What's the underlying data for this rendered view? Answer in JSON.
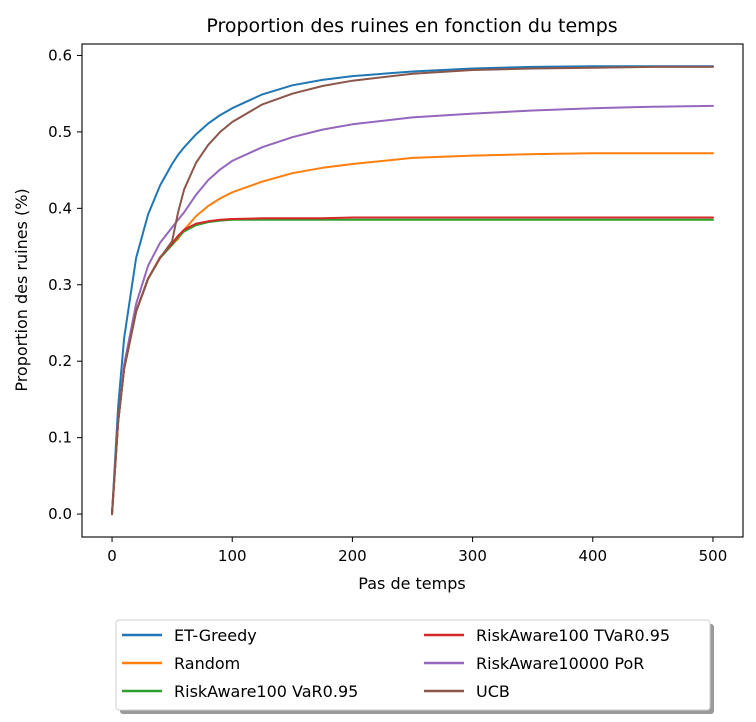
{
  "chart_data": {
    "type": "line",
    "title": "Proportion des ruines en fonction du temps",
    "xlabel": "Pas de temps",
    "ylabel": "Proportion des ruines (%)",
    "xlim": [
      -25,
      525
    ],
    "ylim": [
      -0.03,
      0.615
    ],
    "xticks": [
      0,
      100,
      200,
      300,
      400,
      500
    ],
    "xtick_labels": [
      "0",
      "100",
      "200",
      "300",
      "400",
      "500"
    ],
    "yticks": [
      0.0,
      0.1,
      0.2,
      0.3,
      0.4,
      0.5,
      0.6
    ],
    "ytick_labels": [
      "0.0",
      "0.1",
      "0.2",
      "0.3",
      "0.4",
      "0.5",
      "0.6"
    ],
    "grid": false,
    "legend_placement": "below plot, two columns",
    "x": [
      0,
      5,
      10,
      20,
      30,
      40,
      50,
      55,
      60,
      70,
      80,
      90,
      100,
      125,
      150,
      175,
      200,
      250,
      300,
      350,
      400,
      450,
      500
    ],
    "series": [
      {
        "name": "ET-Greedy",
        "color": "#1f77b4",
        "values": [
          0.0,
          0.14,
          0.23,
          0.335,
          0.392,
          0.43,
          0.458,
          0.47,
          0.48,
          0.497,
          0.511,
          0.522,
          0.531,
          0.549,
          0.561,
          0.568,
          0.573,
          0.579,
          0.583,
          0.585,
          0.586,
          0.586,
          0.586
        ]
      },
      {
        "name": "Random",
        "color": "#ff7f0e",
        "values": [
          0.0,
          0.12,
          0.19,
          0.265,
          0.308,
          0.335,
          0.353,
          0.36,
          0.372,
          0.39,
          0.403,
          0.413,
          0.421,
          0.435,
          0.446,
          0.453,
          0.458,
          0.466,
          0.469,
          0.471,
          0.472,
          0.472,
          0.472
        ]
      },
      {
        "name": "RiskAware100 VaR0.95",
        "color": "#2ca02c",
        "values": [
          0.0,
          0.12,
          0.19,
          0.265,
          0.308,
          0.335,
          0.352,
          0.362,
          0.37,
          0.378,
          0.382,
          0.384,
          0.385,
          0.385,
          0.385,
          0.385,
          0.385,
          0.385,
          0.385,
          0.385,
          0.385,
          0.385,
          0.385
        ]
      },
      {
        "name": "RiskAware100 TVaR0.95",
        "color": "#d62728",
        "values": [
          0.0,
          0.12,
          0.19,
          0.265,
          0.308,
          0.336,
          0.354,
          0.364,
          0.372,
          0.38,
          0.383,
          0.385,
          0.386,
          0.387,
          0.387,
          0.387,
          0.388,
          0.388,
          0.388,
          0.388,
          0.388,
          0.388,
          0.388
        ]
      },
      {
        "name": "RiskAware10000 PoR",
        "color": "#9467bd",
        "values": [
          0.0,
          0.12,
          0.195,
          0.275,
          0.325,
          0.355,
          0.375,
          0.385,
          0.395,
          0.418,
          0.437,
          0.451,
          0.462,
          0.48,
          0.493,
          0.503,
          0.51,
          0.519,
          0.524,
          0.528,
          0.531,
          0.533,
          0.534
        ]
      },
      {
        "name": "UCB",
        "color": "#8c564b",
        "values": [
          0.0,
          0.12,
          0.19,
          0.265,
          0.308,
          0.335,
          0.357,
          0.395,
          0.425,
          0.46,
          0.483,
          0.5,
          0.513,
          0.536,
          0.55,
          0.56,
          0.567,
          0.576,
          0.581,
          0.583,
          0.584,
          0.585,
          0.585
        ]
      }
    ]
  }
}
